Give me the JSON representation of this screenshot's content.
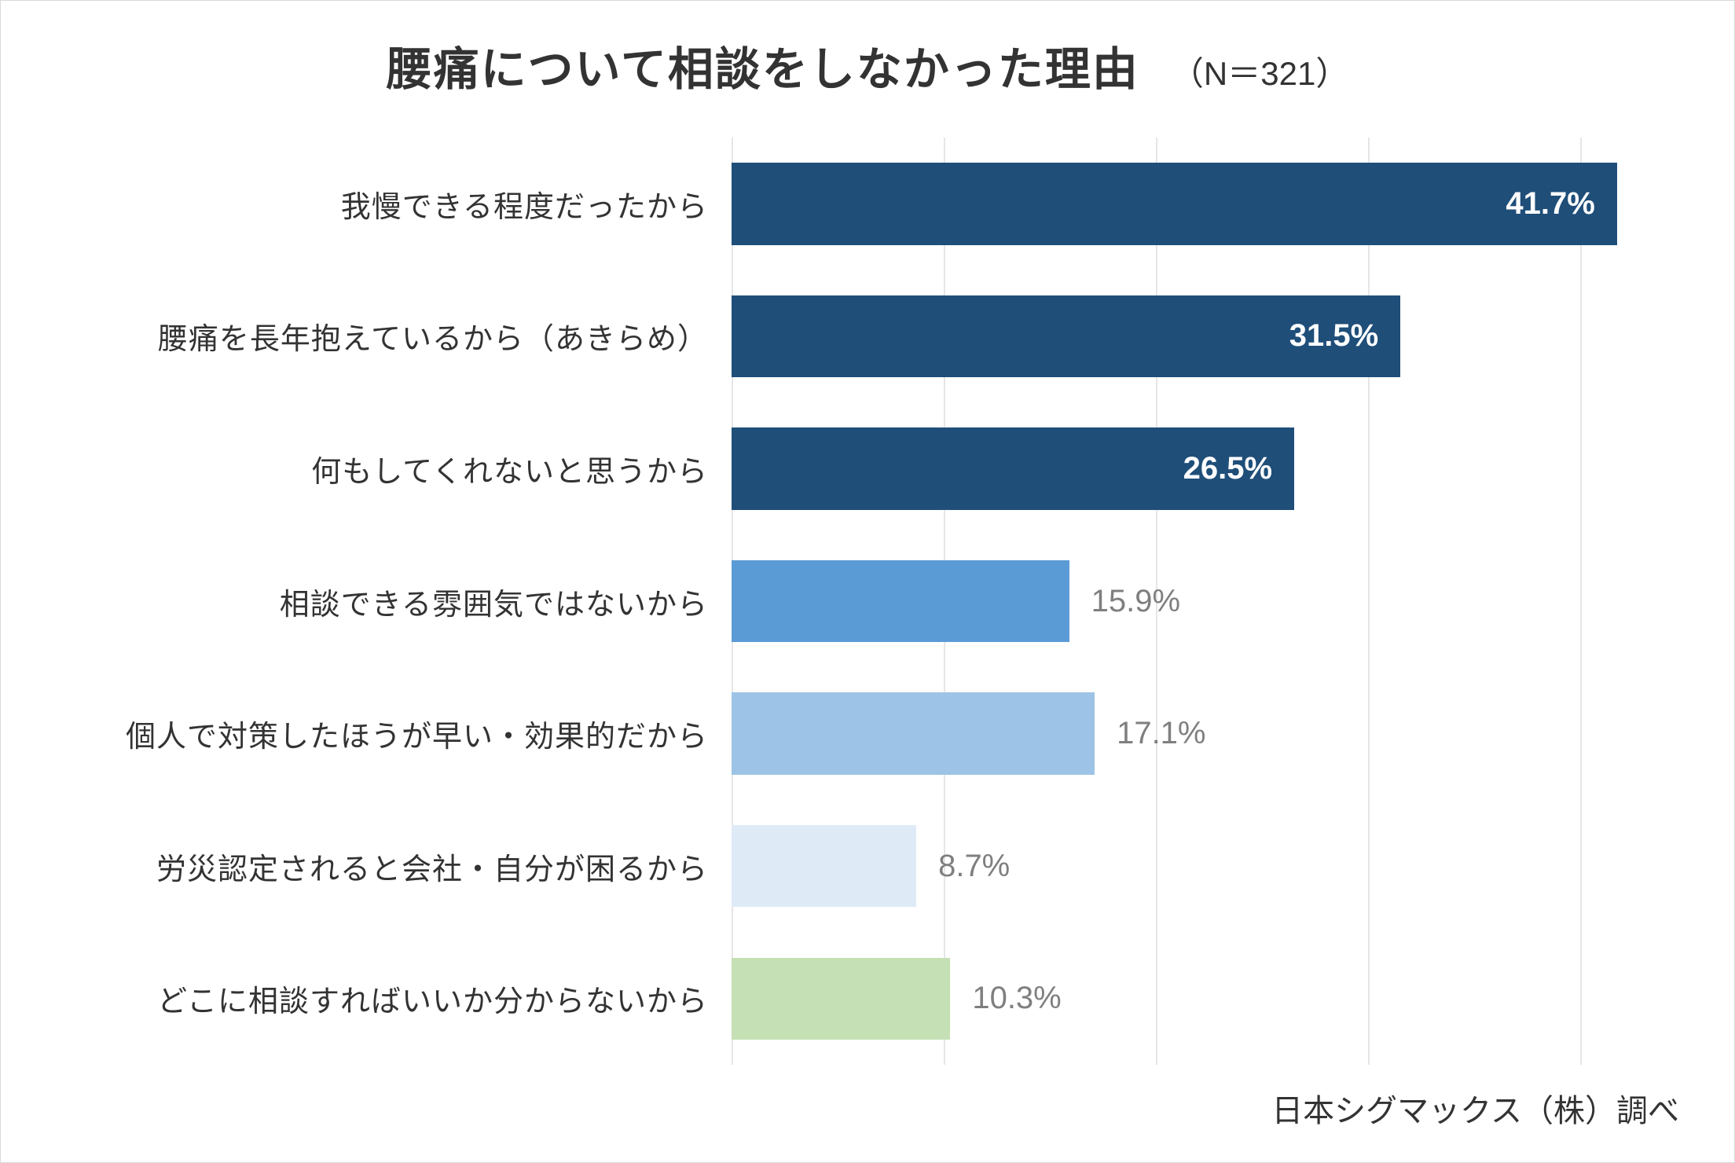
{
  "chart": {
    "type": "bar-horizontal",
    "title": "腰痛について相談をしなかった理由",
    "subtitle": "（N＝321）",
    "title_fontsize": 58,
    "subtitle_fontsize": 42,
    "background_color": "#ffffff",
    "grid_color": "#e6e6e6",
    "label_fontsize": 38,
    "value_fontsize": 40,
    "x_max": 45,
    "gridline_positions_pct": [
      0,
      22.2,
      44.4,
      66.6,
      88.8
    ],
    "bar_height_ratio": 0.62,
    "categories": [
      "我慢できる程度だったから",
      "腰痛を長年抱えているから（あきらめ）",
      "何もしてくれないと思うから",
      "相談できる雰囲気ではないから",
      "個人で対策したほうが早い・効果的だから",
      "労災認定されると会社・自分が困るから",
      "どこに相談すればいいか分からないから"
    ],
    "values": [
      41.7,
      31.5,
      26.5,
      15.9,
      17.1,
      8.7,
      10.3
    ],
    "value_labels": [
      "41.7%",
      "31.5%",
      "26.5%",
      "15.9%",
      "17.1%",
      "8.7%",
      "10.3%"
    ],
    "bar_colors": [
      "#1f4e79",
      "#1f4e79",
      "#1f4e79",
      "#5b9bd5",
      "#9dc3e6",
      "#deebf7",
      "#c5e0b4"
    ],
    "label_inside": [
      true,
      true,
      true,
      false,
      false,
      false,
      false
    ],
    "outside_label_colors": [
      "#ffffff",
      "#ffffff",
      "#ffffff",
      "#7f7f7f",
      "#7f7f7f",
      "#7f7f7f",
      "#7f7f7f"
    ],
    "source_note": "日本シグマックス（株）調べ"
  }
}
